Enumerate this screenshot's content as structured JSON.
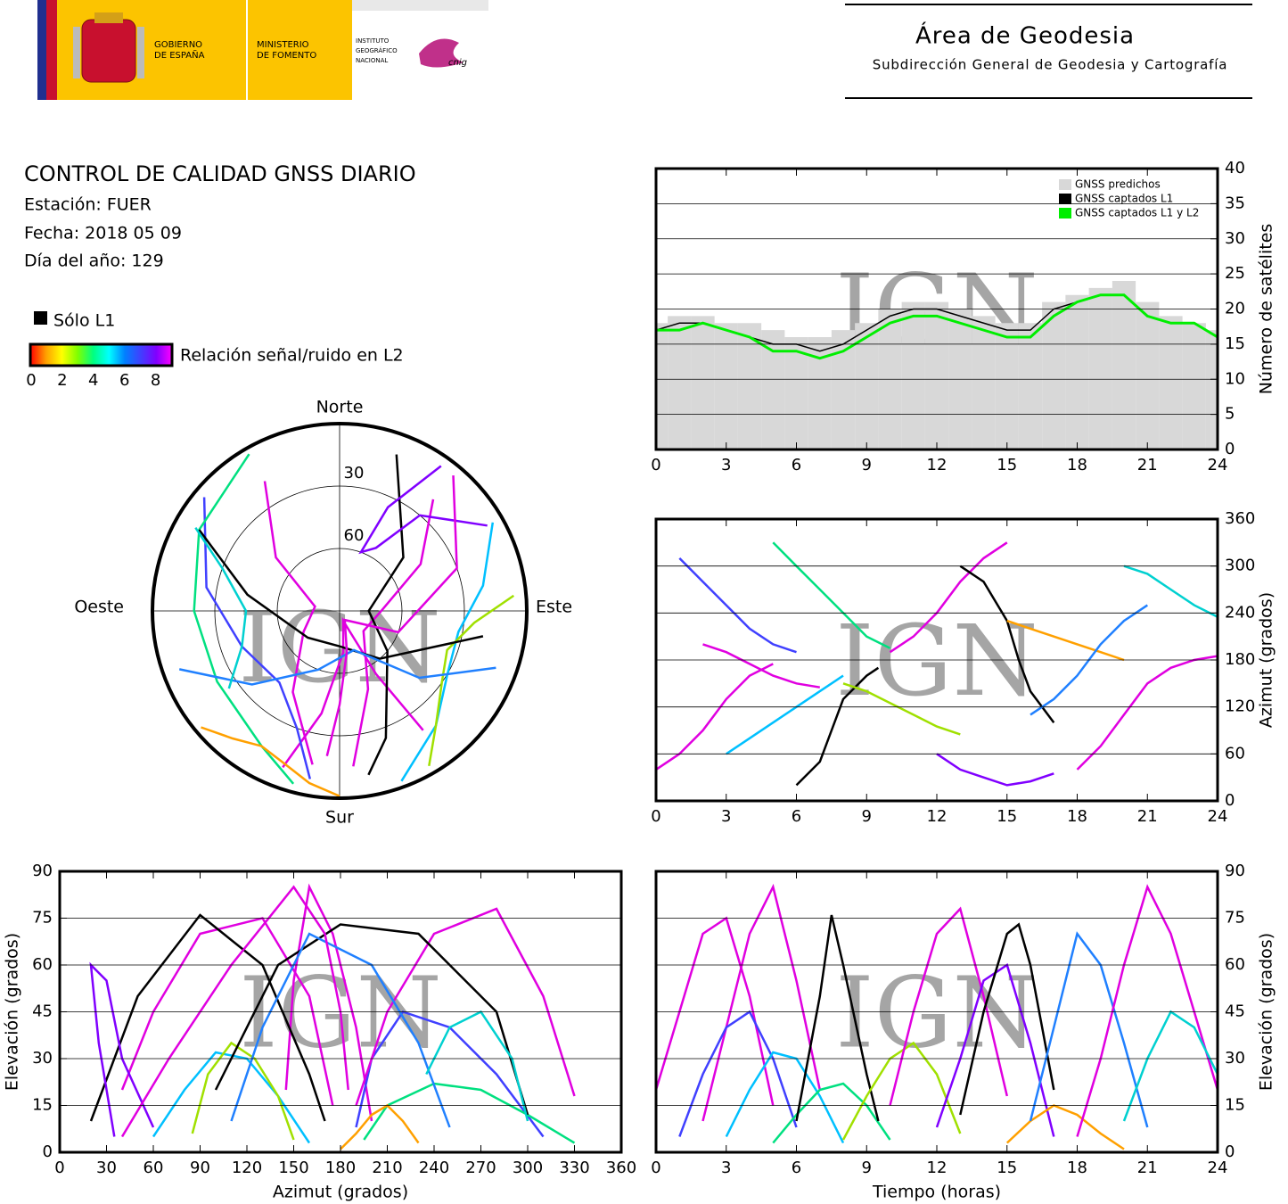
{
  "header": {
    "government": [
      "GOBIERNO",
      "DE ESPAÑA"
    ],
    "ministry": [
      "MINISTERIO",
      "DE FOMENTO"
    ],
    "institute": [
      "INSTITUTO",
      "GEOGRÁFICO",
      "NACIONAL"
    ],
    "cnig": "cnig",
    "area": "Área de Geodesia",
    "subdirectorate": "Subdirección General de Geodesia y Cartografía"
  },
  "info": {
    "title": "CONTROL DE CALIDAD GNSS DIARIO",
    "station": "Estación: FUER",
    "date": "Fecha: 2018 05 09",
    "day": "Día del año: 129"
  },
  "legend": {
    "l1_only": "Sólo L1",
    "l1_color": "#000000",
    "snr_label": "Relación señal/ruido en L2",
    "snr_ticks": [
      0,
      2,
      4,
      6,
      8
    ],
    "snr_lim": [
      0,
      9
    ],
    "snr_colors": [
      "#ff0000",
      "#ffa000",
      "#ffff00",
      "#80ff00",
      "#00ff80",
      "#00ffff",
      "#0080ff",
      "#4040ff",
      "#8000ff",
      "#ff00ff"
    ]
  },
  "watermark": "IGN",
  "passes": [
    {
      "color": "#e000e0",
      "t": [
        0,
        1,
        2,
        3,
        4,
        5
      ],
      "az": [
        40,
        60,
        90,
        130,
        160,
        175
      ],
      "el": [
        20,
        45,
        70,
        75,
        50,
        15
      ]
    },
    {
      "color": "#e000e0",
      "t": [
        2,
        3,
        4,
        5,
        6,
        7
      ],
      "az": [
        200,
        190,
        175,
        160,
        150,
        145
      ],
      "el": [
        10,
        40,
        70,
        85,
        55,
        20
      ]
    },
    {
      "color": "#4040ff",
      "t": [
        1,
        2,
        3,
        4,
        5,
        6
      ],
      "az": [
        310,
        280,
        250,
        220,
        200,
        190
      ],
      "el": [
        5,
        25,
        40,
        45,
        30,
        8
      ]
    },
    {
      "color": "#00c0ff",
      "t": [
        3,
        4,
        5,
        6,
        7,
        8
      ],
      "az": [
        60,
        80,
        100,
        120,
        140,
        160
      ],
      "el": [
        5,
        20,
        32,
        30,
        18,
        3
      ]
    },
    {
      "color": "#00e080",
      "t": [
        5,
        6,
        7,
        8,
        9,
        10
      ],
      "az": [
        330,
        300,
        270,
        240,
        210,
        195
      ],
      "el": [
        3,
        12,
        20,
        22,
        15,
        4
      ]
    },
    {
      "color": "#000000",
      "t": [
        6,
        7,
        7.5,
        8,
        9,
        9.5
      ],
      "az": [
        20,
        50,
        90,
        130,
        160,
        170
      ],
      "el": [
        10,
        50,
        76,
        60,
        25,
        10
      ]
    },
    {
      "color": "#a0e000",
      "t": [
        8,
        9,
        10,
        11,
        12,
        13
      ],
      "az": [
        150,
        140,
        125,
        110,
        95,
        85
      ],
      "el": [
        4,
        18,
        30,
        35,
        25,
        6
      ]
    },
    {
      "color": "#e000e0",
      "t": [
        10,
        11,
        12,
        13,
        14,
        15
      ],
      "az": [
        190,
        210,
        240,
        280,
        310,
        330
      ],
      "el": [
        15,
        45,
        70,
        78,
        50,
        18
      ]
    },
    {
      "color": "#8000ff",
      "t": [
        12,
        13,
        14,
        15,
        16,
        17
      ],
      "az": [
        60,
        40,
        30,
        20,
        25,
        35
      ],
      "el": [
        8,
        30,
        55,
        60,
        35,
        5
      ]
    },
    {
      "color": "#000000",
      "t": [
        13,
        14,
        15,
        15.5,
        16,
        17
      ],
      "az": [
        300,
        280,
        230,
        180,
        140,
        100
      ],
      "el": [
        12,
        45,
        70,
        73,
        60,
        20
      ]
    },
    {
      "color": "#ffa000",
      "t": [
        15,
        16,
        17,
        18,
        19,
        20
      ],
      "az": [
        230,
        220,
        210,
        200,
        190,
        180
      ],
      "el": [
        3,
        10,
        15,
        12,
        6,
        1
      ]
    },
    {
      "color": "#2080ff",
      "t": [
        16,
        17,
        18,
        19,
        20,
        21
      ],
      "az": [
        110,
        130,
        160,
        200,
        230,
        250
      ],
      "el": [
        10,
        40,
        70,
        60,
        35,
        8
      ]
    },
    {
      "color": "#e000e0",
      "t": [
        18,
        19,
        20,
        21,
        22,
        23,
        24
      ],
      "az": [
        40,
        70,
        110,
        150,
        170,
        180,
        185
      ],
      "el": [
        5,
        30,
        60,
        85,
        70,
        45,
        20
      ]
    },
    {
      "color": "#00d0d0",
      "t": [
        20,
        21,
        22,
        23,
        24
      ],
      "az": [
        300,
        290,
        270,
        250,
        235
      ],
      "el": [
        10,
        30,
        45,
        40,
        25
      ]
    }
  ],
  "chart_data": [
    {
      "type": "polar",
      "directions": {
        "north": "Norte",
        "east": "Este",
        "south": "Sur",
        "west": "Oeste"
      },
      "rlim": [
        90,
        0
      ],
      "rticks": [
        30,
        60
      ]
    },
    {
      "type": "line",
      "ylabel": "Número de satélites",
      "yaxis": "right",
      "legend": "top-right",
      "grid": true,
      "x": [
        0,
        1,
        2,
        3,
        4,
        5,
        6,
        7,
        8,
        9,
        10,
        11,
        12,
        13,
        14,
        15,
        16,
        17,
        18,
        19,
        20,
        21,
        22,
        23,
        24
      ],
      "xlim": [
        0,
        24
      ],
      "xticks": [
        0,
        3,
        6,
        9,
        12,
        15,
        18,
        21,
        24
      ],
      "ylim": [
        0,
        40
      ],
      "yticks": [
        0,
        5,
        10,
        15,
        20,
        25,
        30,
        35,
        40
      ],
      "series": [
        {
          "name": "GNSS predichos",
          "color": "#d8d8d8",
          "style": "bars",
          "values": [
            18,
            19,
            19,
            18,
            18,
            17,
            16,
            16,
            17,
            18,
            20,
            21,
            21,
            20,
            19,
            18,
            18,
            21,
            22,
            23,
            24,
            21,
            19,
            18,
            17
          ]
        },
        {
          "name": "GNSS captados L1",
          "color": "#000000",
          "style": "line",
          "values": [
            17,
            18,
            18,
            17,
            16,
            15,
            15,
            14,
            15,
            17,
            19,
            20,
            20,
            19,
            18,
            17,
            17,
            20,
            21,
            22,
            22,
            19,
            18,
            18,
            16
          ]
        },
        {
          "name": "GNSS captados L1 y L2",
          "color": "#00ee00",
          "style": "line",
          "values": [
            17,
            17,
            18,
            17,
            16,
            14,
            14,
            13,
            14,
            16,
            18,
            19,
            19,
            18,
            17,
            16,
            16,
            19,
            21,
            22,
            22,
            19,
            18,
            18,
            16
          ]
        }
      ]
    },
    {
      "type": "track",
      "x_key": "t",
      "y_key": "az",
      "ylabel": "Azimut (grados)",
      "yaxis": "right",
      "grid": true,
      "xlim": [
        0,
        24
      ],
      "xticks": [
        0,
        3,
        6,
        9,
        12,
        15,
        18,
        21,
        24
      ],
      "ylim": [
        0,
        360
      ],
      "yticks": [
        0,
        60,
        120,
        180,
        240,
        300,
        360
      ]
    },
    {
      "type": "track",
      "x_key": "az",
      "y_key": "el",
      "xlabel": "Azimut (grados)",
      "ylabel": "Elevación (grados)",
      "yaxis": "left",
      "grid": true,
      "xlim": [
        0,
        360
      ],
      "xticks": [
        0,
        30,
        60,
        90,
        120,
        150,
        180,
        210,
        240,
        270,
        300,
        330,
        360
      ],
      "ylim": [
        0,
        90
      ],
      "yticks": [
        0,
        15,
        30,
        45,
        60,
        75,
        90
      ]
    },
    {
      "type": "track",
      "x_key": "t",
      "y_key": "el",
      "xlabel": "Tiempo (horas)",
      "ylabel": "Elevación (grados)",
      "yaxis": "right",
      "grid": true,
      "xlim": [
        0,
        24
      ],
      "xticks": [
        0,
        3,
        6,
        9,
        12,
        15,
        18,
        21,
        24
      ],
      "ylim": [
        0,
        90
      ],
      "yticks": [
        0,
        15,
        30,
        45,
        60,
        75,
        90
      ]
    }
  ]
}
